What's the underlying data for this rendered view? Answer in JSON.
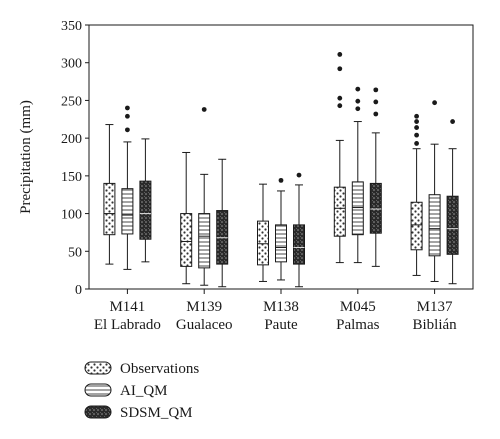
{
  "chart_data": {
    "type": "boxplot",
    "ylabel": "Precipitation (mm)",
    "ylim": [
      0,
      350
    ],
    "yticks": [
      0,
      50,
      100,
      150,
      200,
      250,
      300,
      350
    ],
    "grid": false,
    "legend_position": "bottom-left",
    "categories": [
      {
        "line1": "M141",
        "line2": "El Labrado"
      },
      {
        "line1": "M139",
        "line2": "Gualaceo"
      },
      {
        "line1": "M138",
        "line2": "Paute"
      },
      {
        "line1": "M045",
        "line2": "Palmas"
      },
      {
        "line1": "M137",
        "line2": "Biblián"
      }
    ],
    "series": [
      {
        "name": "Observations",
        "pattern": "dots",
        "boxes": [
          {
            "whisker_low": 33,
            "q1": 72,
            "median": 100,
            "q3": 140,
            "whisker_high": 218,
            "outliers": []
          },
          {
            "whisker_low": 7,
            "q1": 30,
            "median": 63,
            "q3": 100,
            "whisker_high": 181,
            "outliers": []
          },
          {
            "whisker_low": 10,
            "q1": 32,
            "median": 60,
            "q3": 90,
            "whisker_high": 139,
            "outliers": []
          },
          {
            "whisker_low": 35,
            "q1": 70,
            "median": 107,
            "q3": 135,
            "whisker_high": 197,
            "outliers": [
              243,
              253,
              292,
              311
            ]
          },
          {
            "whisker_low": 18,
            "q1": 52,
            "median": 85,
            "q3": 115,
            "whisker_high": 186,
            "outliers": [
              193,
              204,
              214,
              222,
              229
            ]
          }
        ]
      },
      {
        "name": "AI_QM",
        "pattern": "horizontal-lines",
        "boxes": [
          {
            "whisker_low": 26,
            "q1": 73,
            "median": 98,
            "q3": 133,
            "whisker_high": 195,
            "outliers": [
              211,
              229,
              240
            ]
          },
          {
            "whisker_low": 5,
            "q1": 28,
            "median": 70,
            "q3": 100,
            "whisker_high": 152,
            "outliers": [
              238
            ]
          },
          {
            "whisker_low": 12,
            "q1": 36,
            "median": 55,
            "q3": 85,
            "whisker_high": 130,
            "outliers": [
              144
            ]
          },
          {
            "whisker_low": 35,
            "q1": 72,
            "median": 108,
            "q3": 142,
            "whisker_high": 222,
            "outliers": [
              239,
              249,
              265
            ]
          },
          {
            "whisker_low": 10,
            "q1": 44,
            "median": 80,
            "q3": 125,
            "whisker_high": 192,
            "outliers": [
              247
            ]
          }
        ]
      },
      {
        "name": "SDSM_QM",
        "pattern": "crosshatch",
        "boxes": [
          {
            "whisker_low": 36,
            "q1": 66,
            "median": 100,
            "q3": 143,
            "whisker_high": 199,
            "outliers": []
          },
          {
            "whisker_low": 3,
            "q1": 33,
            "median": 68,
            "q3": 104,
            "whisker_high": 172,
            "outliers": []
          },
          {
            "whisker_low": 3,
            "q1": 33,
            "median": 55,
            "q3": 85,
            "whisker_high": 138,
            "outliers": [
              151
            ]
          },
          {
            "whisker_low": 30,
            "q1": 74,
            "median": 106,
            "q3": 140,
            "whisker_high": 207,
            "outliers": [
              232,
              248,
              264
            ]
          },
          {
            "whisker_low": 7,
            "q1": 46,
            "median": 80,
            "q3": 123,
            "whisker_high": 186,
            "outliers": [
              222
            ]
          }
        ]
      }
    ]
  }
}
